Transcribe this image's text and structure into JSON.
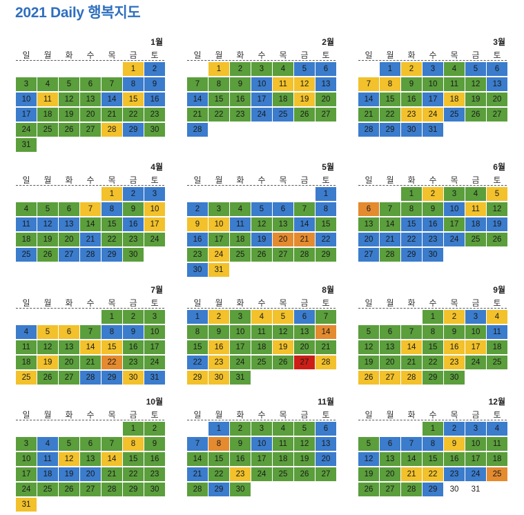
{
  "title": "2021 Daily 행복지도",
  "weekdays": [
    "일",
    "월",
    "화",
    "수",
    "목",
    "금",
    "토"
  ],
  "colors": {
    "B": "#3b7ccc",
    "G": "#5b9e3c",
    "Y": "#f2c12b",
    "O": "#e48a2f",
    "R": "#cc1e16",
    "W": "#ffffff"
  },
  "months": [
    {
      "name": "1월",
      "start": 5,
      "days": 31,
      "mood": "YBGGGGGBBBYGGBYBBGGGGGGGGGGYBGG"
    },
    {
      "name": "2월",
      "start": 1,
      "days": 28,
      "mood": "YGGGBBGGGBYYBBGGBGYGGGGBBGGB"
    },
    {
      "name": "3월",
      "start": 1,
      "days": 31,
      "mood": "BYBGBBYYGGGGBBGGBYGGGGYYBGGBBBB"
    },
    {
      "name": "4월",
      "start": 4,
      "days": 30,
      "mood": "YBBGGGYBGYBBBGGBYGGGBGGGBGBBBG"
    },
    {
      "name": "5월",
      "start": 6,
      "days": 31,
      "mood": "BBGGBBGBYYBGGBGBGGBOOBGYGGGGGBY"
    },
    {
      "name": "6월",
      "start": 2,
      "days": 30,
      "mood": "GYGGYOGGGBYGGGBBGBBBBBBBGGBGBB"
    },
    {
      "name": "7월",
      "start": 4,
      "days": 31,
      "mood": "GGGBYYGBBGGGGYYGGGYGGOGGYGGBBYB"
    },
    {
      "name": "8월",
      "start": 0,
      "days": 31,
      "mood": "BYGYYBGGGGGGGOGYGGYGGBYGGGRYYYG"
    },
    {
      "name": "9월",
      "start": 3,
      "days": 30,
      "mood": "GYBYGGGGGGBGGYGYYGGGGGYGGYYYGG"
    },
    {
      "name": "10월",
      "start": 5,
      "days": 31,
      "mood": "GGGBGGGYGGBYGYGGGBBBGGGGGGGGGGY"
    },
    {
      "name": "11월",
      "start": 1,
      "days": 30,
      "mood": "BGGGGBBOGBGGBGGGGGGBBGYGGGGGBG"
    },
    {
      "name": "12월",
      "start": 3,
      "days": 31,
      "mood": "GBBBGBBBYGGBGGGGGGGGYYBBOGGGBWW"
    }
  ]
}
